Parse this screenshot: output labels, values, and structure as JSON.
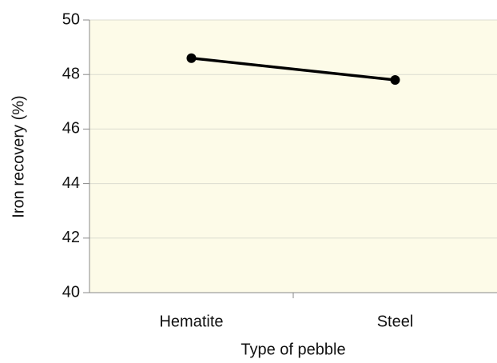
{
  "chart_data": {
    "type": "line",
    "x_label": "Type of pebble",
    "y_label": "Iron recovery (%)",
    "categories": [
      "Hematite",
      "Steel"
    ],
    "series": [
      {
        "name": "Iron recovery",
        "color": "#000000",
        "values": [
          48.6,
          47.8
        ]
      }
    ],
    "ylim": [
      40,
      50
    ],
    "yticks": [
      40,
      42,
      44,
      46,
      48,
      50
    ],
    "grid": true
  }
}
